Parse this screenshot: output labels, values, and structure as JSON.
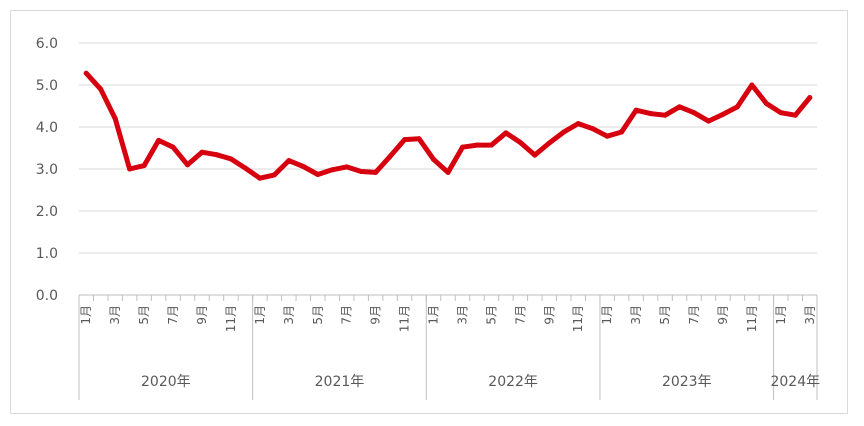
{
  "chart_data": {
    "type": "line",
    "title": "",
    "xlabel": "",
    "ylabel": "",
    "ylim": [
      0,
      6
    ],
    "yticks": [
      "0.0",
      "1.0",
      "2.0",
      "3.0",
      "4.0",
      "5.0",
      "6.0"
    ],
    "grid": true,
    "legend": "none",
    "line_color": "#d7000f",
    "x": [
      "2020-01",
      "2020-02",
      "2020-03",
      "2020-04",
      "2020-05",
      "2020-06",
      "2020-07",
      "2020-08",
      "2020-09",
      "2020-10",
      "2020-11",
      "2020-12",
      "2021-01",
      "2021-02",
      "2021-03",
      "2021-04",
      "2021-05",
      "2021-06",
      "2021-07",
      "2021-08",
      "2021-09",
      "2021-10",
      "2021-11",
      "2021-12",
      "2022-01",
      "2022-02",
      "2022-03",
      "2022-04",
      "2022-05",
      "2022-06",
      "2022-07",
      "2022-08",
      "2022-09",
      "2022-10",
      "2022-11",
      "2022-12",
      "2023-01",
      "2023-02",
      "2023-03",
      "2023-04",
      "2023-05",
      "2023-06",
      "2023-07",
      "2023-08",
      "2023-09",
      "2023-10",
      "2023-11",
      "2023-12",
      "2024-01",
      "2024-02",
      "2024-03"
    ],
    "month_labels": [
      "1月",
      "",
      "3月",
      "",
      "5月",
      "",
      "7月",
      "",
      "9月",
      "",
      "11月",
      "",
      "1月",
      "",
      "3月",
      "",
      "5月",
      "",
      "7月",
      "",
      "9月",
      "",
      "11月",
      "",
      "1月",
      "",
      "3月",
      "",
      "5月",
      "",
      "7月",
      "",
      "9月",
      "",
      "11月",
      "",
      "1月",
      "",
      "3月",
      "",
      "5月",
      "",
      "7月",
      "",
      "9月",
      "",
      "11月",
      "",
      "1月",
      "",
      "3月"
    ],
    "year_groups": [
      {
        "label": "2020年",
        "count": 12
      },
      {
        "label": "2021年",
        "count": 12
      },
      {
        "label": "2022年",
        "count": 12
      },
      {
        "label": "2023年",
        "count": 12
      },
      {
        "label": "2024年",
        "count": 3
      }
    ],
    "series": [
      {
        "values": [
          5.28,
          4.9,
          4.2,
          3.0,
          3.08,
          3.68,
          3.52,
          3.1,
          3.4,
          3.34,
          3.24,
          3.02,
          2.78,
          2.86,
          3.2,
          3.06,
          2.87,
          2.98,
          3.05,
          2.94,
          2.92,
          3.3,
          3.7,
          3.72,
          3.23,
          2.92,
          3.52,
          3.57,
          3.57,
          3.86,
          3.63,
          3.33,
          3.62,
          3.88,
          4.08,
          3.96,
          3.78,
          3.88,
          4.4,
          4.32,
          4.28,
          4.48,
          4.34,
          4.14,
          4.3,
          4.48,
          5.0,
          4.56,
          4.34,
          4.28,
          4.7
        ]
      }
    ]
  }
}
